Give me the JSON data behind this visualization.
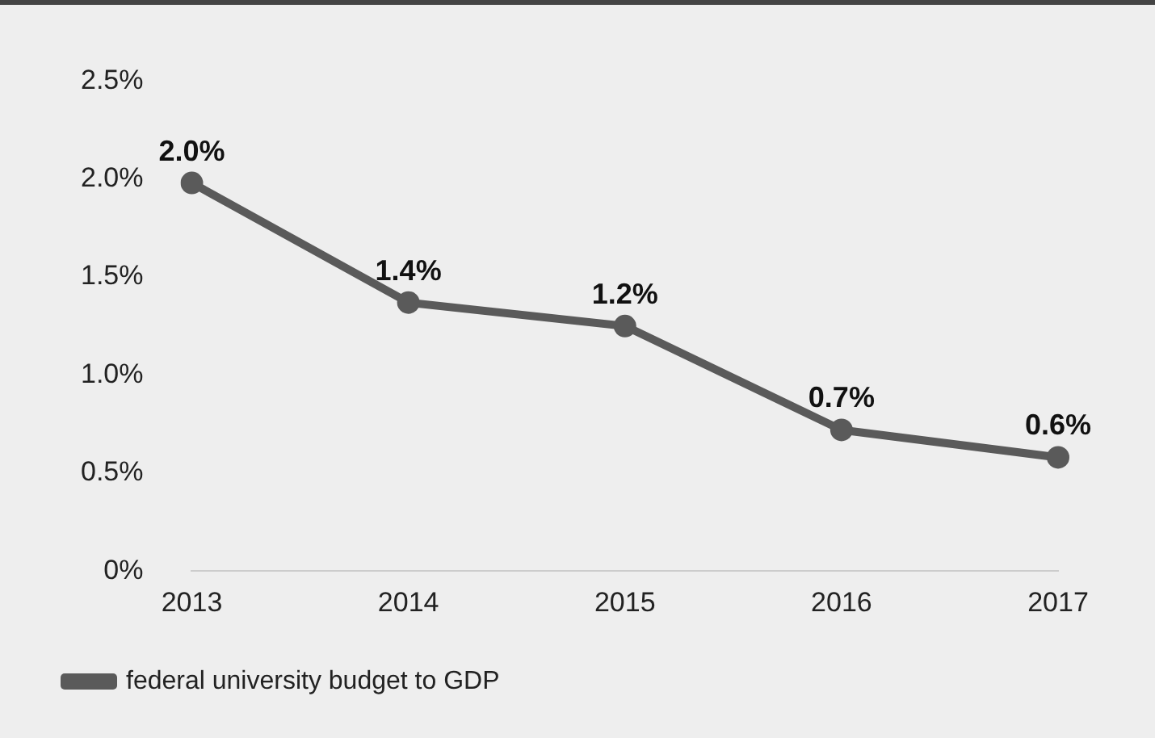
{
  "chart_data": {
    "type": "line",
    "categories": [
      "2013",
      "2014",
      "2015",
      "2016",
      "2017"
    ],
    "series": [
      {
        "name": "federal university budget to GDP",
        "color": "#5a5a5a",
        "values": [
          1.98,
          1.37,
          1.25,
          0.72,
          0.58
        ],
        "value_labels": [
          "2.0%",
          "1.4%",
          "1.2%",
          "0.7%",
          "0.6%"
        ]
      }
    ],
    "ylim": [
      0,
      2.5
    ],
    "yticks": [
      {
        "value": 0,
        "label": "0%"
      },
      {
        "value": 0.5,
        "label": "0.5%"
      },
      {
        "value": 1,
        "label": "1.0%"
      },
      {
        "value": 1.5,
        "label": "1.5%"
      },
      {
        "value": 2,
        "label": "2.0%"
      },
      {
        "value": 2.5,
        "label": "2.5%"
      }
    ],
    "grid": false,
    "legend": "bottom",
    "marker": "circle",
    "line_style": "solid"
  }
}
